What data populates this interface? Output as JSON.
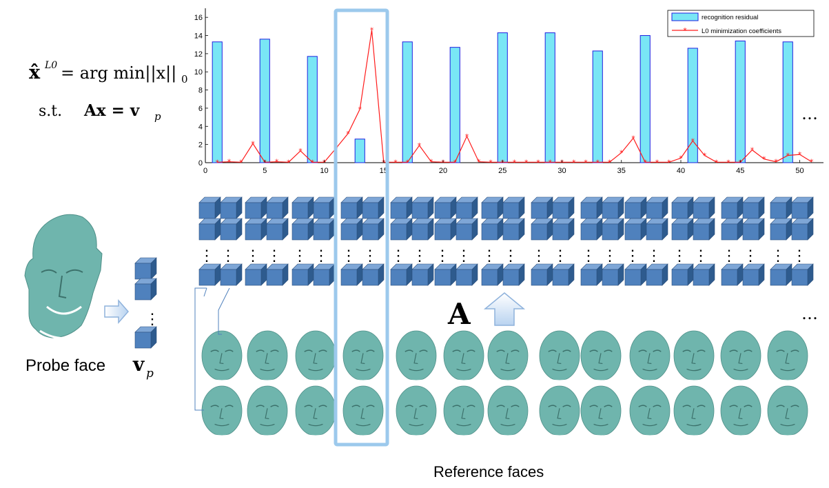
{
  "formula": {
    "lhs_base": "x̂",
    "lhs_sup": "L0",
    "rhs_argmin": "= arg min||x||",
    "rhs_sub": "0",
    "st_label": "s.t.",
    "constraint": "Ax = v",
    "constraint_sub": "p"
  },
  "probe": {
    "label": "Probe face",
    "vector_label": "v",
    "vector_sub": "p"
  },
  "matrix_label": "A",
  "reference_label": "Reference faces",
  "ellipsis": "…",
  "vertical_ellipsis": "⋮",
  "colors": {
    "bar_fill": "#79e6f5",
    "bar_stroke": "#1f1fe0",
    "line": "#ff1a1a",
    "highlight_box": "#9cc9ec",
    "cube_front": "#4f81bd",
    "cube_top": "#7ea6d6",
    "cube_side": "#2e5b8e",
    "face_teal": "#6fb5ad",
    "arrow_fill": "#c5dcf3"
  },
  "chart_data": {
    "type": "bar",
    "title": "",
    "xlabel": "",
    "ylabel": "",
    "xlim": [
      0,
      52
    ],
    "ylim": [
      0,
      17
    ],
    "xticks": [
      0,
      5,
      10,
      15,
      20,
      25,
      30,
      35,
      40,
      45,
      50
    ],
    "yticks": [
      0,
      2,
      4,
      6,
      8,
      10,
      12,
      14,
      16
    ],
    "ytick_labels": [
      "0",
      "2",
      "4",
      "6",
      "8",
      "10",
      "12",
      "14",
      "16"
    ],
    "legend_position": "top-right",
    "series": [
      {
        "name": "recognition residual",
        "type": "bar",
        "x": [
          1,
          5,
          9,
          13,
          17,
          21,
          25,
          29,
          33,
          37,
          41,
          45,
          49
        ],
        "values": [
          13.3,
          13.6,
          11.7,
          2.6,
          13.3,
          12.7,
          14.3,
          14.3,
          12.3,
          14.0,
          12.6,
          13.4,
          13.3
        ]
      },
      {
        "name": "L0 minimization coefficients",
        "type": "line",
        "x": [
          1,
          2,
          3,
          4,
          5,
          6,
          7,
          8,
          9,
          10,
          11,
          12,
          13,
          14,
          15,
          16,
          17,
          18,
          19,
          20,
          21,
          22,
          23,
          24,
          25,
          26,
          27,
          28,
          29,
          30,
          31,
          32,
          33,
          34,
          35,
          36,
          37,
          38,
          39,
          40,
          41,
          42,
          43,
          44,
          45,
          46,
          47,
          48,
          49,
          50,
          51
        ],
        "values": [
          0.05,
          0.1,
          0.05,
          2.1,
          0.05,
          0.1,
          0.05,
          1.3,
          0.05,
          0.05,
          1.6,
          3.2,
          5.9,
          14.6,
          0.05,
          0.05,
          0.05,
          1.9,
          0.1,
          0.05,
          0.05,
          2.9,
          0.1,
          0.05,
          0.05,
          0.05,
          0.05,
          0.05,
          0.05,
          0.05,
          0.05,
          0.05,
          0.05,
          0.05,
          1.1,
          2.7,
          0.05,
          0.05,
          0.05,
          0.5,
          2.4,
          0.8,
          0.05,
          0.05,
          0.05,
          1.4,
          0.4,
          0.1,
          0.8,
          0.9,
          0.1
        ]
      }
    ]
  }
}
